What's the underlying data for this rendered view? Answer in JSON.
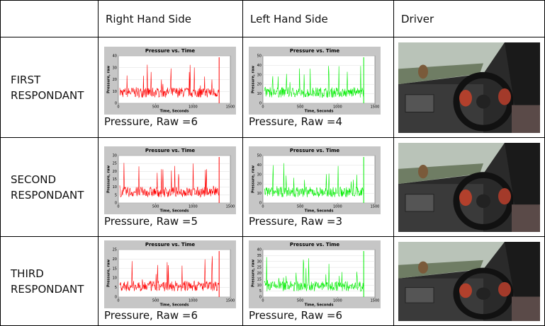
{
  "table": {
    "header": [
      "Right Hand Side",
      "Left Hand Side",
      "Driver"
    ],
    "rows": [
      {
        "label": "FIRST RESPONDANT",
        "cells": [
          {
            "plot": {
              "title": "Pressure vs. Time",
              "y_label": "Pressure, raw",
              "x_label": "Time, Seconds",
              "color": "#ff0000",
              "xlim": [
                0,
                1500
              ],
              "xticks": [
                0,
                500,
                1000,
                1500
              ],
              "ylim": [
                0,
                40
              ],
              "yticks": [
                0,
                10,
                20,
                30,
                40
              ]
            },
            "caption": "Pressure, Raw =6"
          },
          {
            "plot": {
              "title": "Pressure vs. Time",
              "y_label": "Pressure, raw",
              "x_label": "Time, Seconds",
              "color": "#00ee00",
              "xlim": [
                0,
                1500
              ],
              "xticks": [
                0,
                500,
                1000,
                1500
              ],
              "ylim": [
                0,
                50
              ],
              "yticks": [
                0,
                10,
                20,
                30,
                40,
                50
              ]
            },
            "caption": "Pressure, Raw =4"
          }
        ]
      },
      {
        "label": "SECOND RESPONDANT",
        "cells": [
          {
            "plot": {
              "title": "Pressure vs. Time",
              "y_label": "Pressure, raw",
              "x_label": "Time, Seconds",
              "color": "#ff0000",
              "xlim": [
                0,
                1500
              ],
              "xticks": [
                0,
                500,
                1000,
                1500
              ],
              "ylim": [
                0,
                30
              ],
              "yticks": [
                0,
                5,
                10,
                15,
                20,
                25,
                30
              ]
            },
            "caption": "Pressure, Raw =5"
          },
          {
            "plot": {
              "title": "Pressure vs. Time",
              "y_label": "Pressure, raw",
              "x_label": "Time, Seconds",
              "color": "#00ee00",
              "xlim": [
                0,
                1500
              ],
              "xticks": [
                0,
                500,
                1000,
                1500
              ],
              "ylim": [
                0,
                50
              ],
              "yticks": [
                0,
                10,
                20,
                30,
                40,
                50
              ]
            },
            "caption": "Pressure, Raw =3"
          }
        ]
      },
      {
        "label": "THIRD RESPONDANT",
        "cells": [
          {
            "plot": {
              "title": "Pressure vs. Time",
              "y_label": "Pressure, raw",
              "x_label": "Time, Seconds",
              "color": "#ff0000",
              "xlim": [
                0,
                1500
              ],
              "xticks": [
                0,
                500,
                1000,
                1500
              ],
              "ylim": [
                0,
                25
              ],
              "yticks": [
                0,
                5,
                10,
                15,
                20,
                25
              ]
            },
            "caption": "Pressure, Raw =6"
          },
          {
            "plot": {
              "title": "Pressure vs. Time",
              "y_label": "Pressure, raw",
              "x_label": "Time, Seconds",
              "color": "#00ee00",
              "xlim": [
                0,
                1500
              ],
              "xticks": [
                0,
                500,
                1000,
                1500
              ],
              "ylim": [
                0,
                40
              ],
              "yticks": [
                0,
                5,
                10,
                15,
                20,
                25,
                30,
                35,
                40
              ]
            },
            "caption": "Pressure, Raw =6"
          }
        ]
      }
    ]
  }
}
